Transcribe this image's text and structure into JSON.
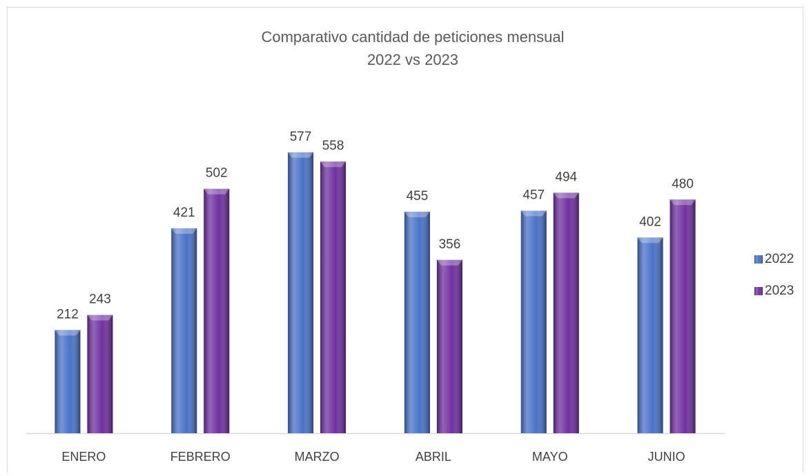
{
  "chart_data": {
    "type": "bar",
    "title": "Comparativo cantidad de peticiones mensual",
    "subtitle": "2022 vs 2023",
    "categories": [
      "ENERO",
      "FEBRERO",
      "MARZO",
      "ABRIL",
      "MAYO",
      "JUNIO"
    ],
    "series": [
      {
        "name": "2022",
        "color": "#4a72c8",
        "values": [
          212,
          421,
          577,
          455,
          457,
          402
        ]
      },
      {
        "name": "2023",
        "color": "#7030a0",
        "values": [
          243,
          502,
          558,
          356,
          494,
          480
        ]
      }
    ],
    "ylim": [
      0,
      700
    ],
    "legend": "right"
  }
}
